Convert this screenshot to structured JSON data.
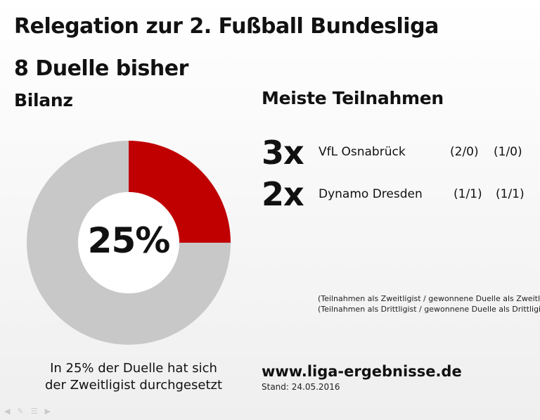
{
  "title": "Relegation zur 2. Fußball Bundesliga",
  "subtitle": "8 Duelle bisher",
  "bilanz": {
    "heading": "Bilanz",
    "center_label": "25%",
    "caption_line1": "In 25% der Duelle hat sich",
    "caption_line2": "der Zweitligist durchgesetzt"
  },
  "chart_data": {
    "type": "pie",
    "title": "",
    "slices": [
      {
        "label": "",
        "value": 25,
        "color": "#c00000"
      },
      {
        "label": "",
        "value": 75,
        "color": "#c8c8c8"
      }
    ],
    "center_text": "25%",
    "donut": true
  },
  "meiste": {
    "heading": "Meiste Teilnahmen",
    "rows": [
      {
        "count": "3x",
        "team": "VfL Osnabrück",
        "stat1": "(2/0)",
        "stat2": "(1/0)"
      },
      {
        "count": "2x",
        "team": "Dynamo Dresden",
        "stat1": "(1/1)",
        "stat2": "(1/1)"
      }
    ],
    "legend_line1": "(Teilnahmen als Zweitligist / gewonnene Duelle als Zweitligist)",
    "legend_line2": "(Teilnahmen als Drittligist / gewonnene Duelle als Drittligist)"
  },
  "footer": {
    "site": "www.liga-ergebnisse.de",
    "stand": "Stand: 24.05.2016"
  },
  "toolbar_icons": [
    "arrow-left-icon",
    "pen-icon",
    "menu-icon",
    "arrow-right-icon"
  ]
}
